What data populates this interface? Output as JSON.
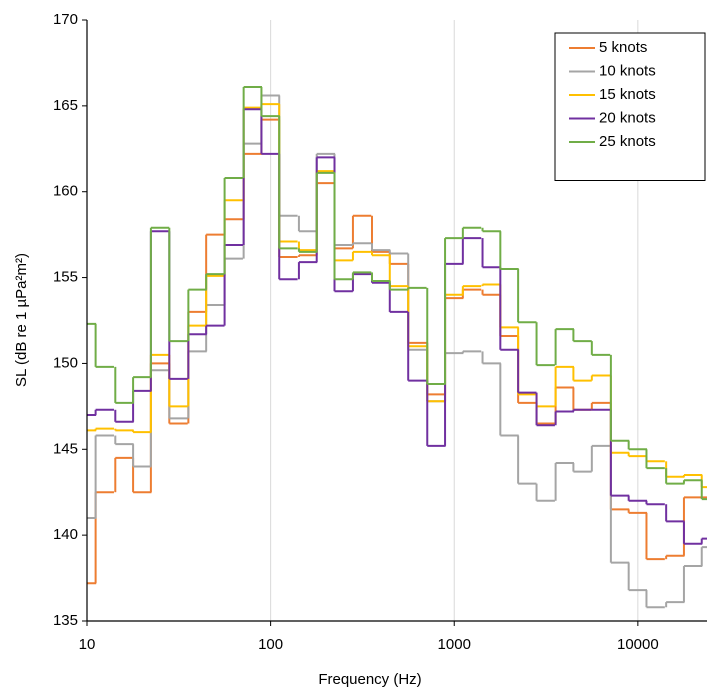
{
  "chart_data": {
    "type": "step",
    "x_label": "Frequency (Hz)",
    "y_label": "SL (dB re 1 µPa²m²)",
    "xscale": "log",
    "xlim": [
      10,
      23800
    ],
    "ylim": [
      135,
      170
    ],
    "xticks": [
      10,
      100,
      1000,
      10000
    ],
    "yticks": [
      135,
      140,
      145,
      150,
      155,
      160,
      165,
      170
    ],
    "grid": "x",
    "legend": "upper right",
    "x": [
      10,
      12.5,
      16,
      20,
      25,
      31.5,
      40,
      50,
      63,
      80,
      100,
      125,
      160,
      200,
      250,
      315,
      400,
      500,
      630,
      800,
      1000,
      1250,
      1600,
      2000,
      2500,
      3150,
      4000,
      5000,
      6300,
      8000,
      10000,
      12500,
      16000,
      20000,
      25000
    ],
    "series": [
      {
        "name": "5 knots",
        "color": "#ed7d31",
        "values": [
          137.2,
          142.5,
          144.5,
          142.5,
          150.0,
          146.5,
          153.0,
          157.5,
          158.4,
          162.2,
          164.2,
          156.2,
          156.3,
          160.5,
          156.7,
          158.6,
          156.5,
          155.8,
          151.2,
          148.2,
          153.8,
          154.3,
          154.0,
          151.6,
          147.7,
          146.5,
          148.6,
          147.3,
          147.7,
          141.5,
          141.3,
          138.6,
          138.8,
          142.2,
          142.2
        ]
      },
      {
        "name": "10 knots",
        "color": "#a5a5a5",
        "values": [
          141.0,
          145.8,
          145.3,
          144.0,
          149.6,
          146.8,
          150.7,
          153.4,
          156.1,
          162.8,
          165.6,
          158.6,
          157.7,
          162.2,
          156.9,
          157.0,
          156.6,
          156.4,
          150.8,
          147.8,
          150.6,
          150.7,
          150.0,
          145.8,
          143.0,
          142.0,
          144.2,
          143.7,
          145.2,
          138.4,
          136.8,
          135.8,
          136.1,
          138.2,
          139.3
        ]
      },
      {
        "name": "15 knots",
        "color": "#ffc000",
        "values": [
          146.1,
          146.2,
          146.1,
          146.0,
          150.5,
          147.5,
          152.2,
          155.1,
          159.5,
          164.9,
          165.1,
          157.1,
          156.6,
          161.2,
          156.0,
          156.5,
          156.3,
          154.5,
          151.0,
          147.8,
          154.0,
          154.5,
          154.6,
          152.1,
          148.2,
          147.5,
          149.8,
          149.0,
          149.3,
          144.8,
          144.6,
          144.3,
          143.4,
          143.5,
          142.8
        ]
      },
      {
        "name": "20 knots",
        "color": "#7030a0",
        "values": [
          147.0,
          147.3,
          146.6,
          148.4,
          157.7,
          149.1,
          151.7,
          152.2,
          156.9,
          164.8,
          162.2,
          154.9,
          155.9,
          162.0,
          154.2,
          155.2,
          154.7,
          153.0,
          149.0,
          145.2,
          155.8,
          157.3,
          155.6,
          150.8,
          148.3,
          146.4,
          147.2,
          147.3,
          147.3,
          142.3,
          142.0,
          141.8,
          140.8,
          139.5,
          139.8
        ]
      },
      {
        "name": "25 knots",
        "color": "#70ad47",
        "values": [
          152.3,
          149.8,
          147.7,
          149.2,
          157.9,
          151.3,
          154.3,
          155.2,
          160.8,
          166.1,
          164.4,
          156.7,
          156.5,
          161.1,
          154.9,
          155.3,
          154.8,
          154.3,
          154.4,
          148.8,
          157.3,
          157.9,
          157.7,
          155.5,
          152.4,
          149.9,
          152.0,
          151.3,
          150.5,
          145.5,
          145.0,
          143.9,
          143.0,
          143.2,
          142.1
        ]
      }
    ]
  }
}
